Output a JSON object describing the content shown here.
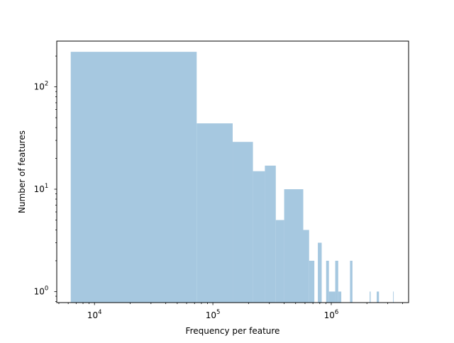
{
  "chart_data": {
    "type": "bar",
    "xlabel": "Frequency per feature",
    "ylabel": "Number of features",
    "x_scale": "log",
    "y_scale": "log",
    "xlim": [
      4800,
      4500000
    ],
    "ylim": [
      0.78,
      280
    ],
    "x_ticks": [
      {
        "value": 10000,
        "base": "10",
        "exp": "4"
      },
      {
        "value": 100000,
        "base": "10",
        "exp": "5"
      },
      {
        "value": 1000000,
        "base": "10",
        "exp": "6"
      }
    ],
    "y_ticks": [
      {
        "value": 1,
        "base": "10",
        "exp": "0"
      },
      {
        "value": 10,
        "base": "10",
        "exp": "1"
      },
      {
        "value": 100,
        "base": "10",
        "exp": "2"
      }
    ],
    "bar_color": "#a6c8e0",
    "grid": false,
    "bins": [
      {
        "x0": 6300,
        "x1": 73000,
        "count": 220
      },
      {
        "x0": 73000,
        "x1": 147000,
        "count": 44
      },
      {
        "x0": 147000,
        "x1": 218000,
        "count": 29
      },
      {
        "x0": 218000,
        "x1": 275000,
        "count": 15
      },
      {
        "x0": 275000,
        "x1": 340000,
        "count": 17
      },
      {
        "x0": 340000,
        "x1": 400000,
        "count": 5
      },
      {
        "x0": 400000,
        "x1": 580000,
        "count": 10
      },
      {
        "x0": 580000,
        "x1": 650000,
        "count": 4
      },
      {
        "x0": 650000,
        "x1": 720000,
        "count": 2
      },
      {
        "x0": 770000,
        "x1": 830000,
        "count": 3
      },
      {
        "x0": 905000,
        "x1": 955000,
        "count": 2
      },
      {
        "x0": 955000,
        "x1": 1080000,
        "count": 1
      },
      {
        "x0": 1080000,
        "x1": 1145000,
        "count": 2
      },
      {
        "x0": 1145000,
        "x1": 1215000,
        "count": 1
      },
      {
        "x0": 1440000,
        "x1": 1510000,
        "count": 2
      },
      {
        "x0": 2110000,
        "x1": 2150000,
        "count": 1
      },
      {
        "x0": 2420000,
        "x1": 2530000,
        "count": 1
      },
      {
        "x0": 3330000,
        "x1": 3370000,
        "count": 1
      }
    ]
  }
}
